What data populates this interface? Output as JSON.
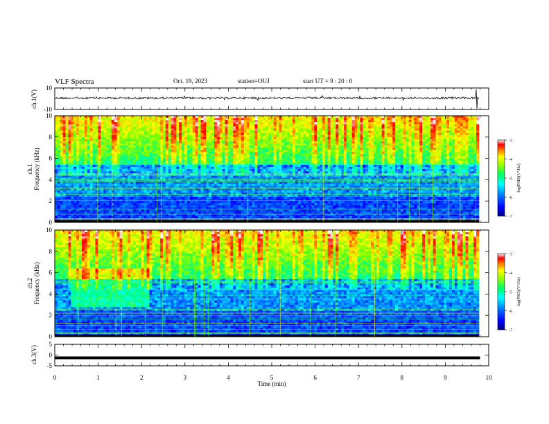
{
  "header": {
    "title": "VLF Spectra",
    "date": "Oct. 19, 2023",
    "station": "station=OUJ",
    "start": "start UT =  9 : 20 : 0"
  },
  "chart_data": [
    {
      "type": "line",
      "panel": "ch1-waveform",
      "ylabel": "ch.1(V)",
      "ylim": [
        -10,
        10
      ],
      "yticks": [
        "10",
        "-10"
      ],
      "xlim": [
        0,
        10
      ],
      "description_level": 0
    },
    {
      "type": "heatmap",
      "panel": "ch1-spectrogram",
      "ylabel": "ch.1\nFrequency (kHz)",
      "ylabel_line1": "ch.1",
      "ylabel_line2": "Frequency (kHz)",
      "ylim": [
        0,
        10
      ],
      "yticks": [
        "0",
        "2",
        "4",
        "6",
        "8",
        "10"
      ],
      "xlim": [
        0,
        10
      ],
      "colorbar": {
        "label": "log(PSD)(V²/Hz)",
        "range": [
          -7,
          -3
        ],
        "ticks": [
          "-3",
          "-4",
          "-5",
          "-6",
          "-7"
        ]
      }
    },
    {
      "type": "heatmap",
      "panel": "ch2-spectrogram",
      "ylabel_line1": "ch.2",
      "ylabel_line2": "Frequency (kHz)",
      "ylim": [
        0,
        10
      ],
      "yticks": [
        "0",
        "2",
        "4",
        "6",
        "8",
        "10"
      ],
      "xlim": [
        0,
        10
      ],
      "colorbar": {
        "label": "log(PSD)(V²/Hz)",
        "range": [
          -7,
          -3
        ],
        "ticks": [
          "-3",
          "-4",
          "-5",
          "-6",
          "-7"
        ]
      }
    },
    {
      "type": "line",
      "panel": "ch3-signal",
      "ylabel": "ch.3(V)",
      "ylim": [
        -5,
        5
      ],
      "yticks": [
        "5",
        "0",
        "-5"
      ],
      "x": [
        0,
        9.8
      ],
      "y": [
        -1.3,
        -1.3
      ],
      "xlabel": "Time (min)",
      "xticks": [
        "0",
        "1",
        "2",
        "3",
        "4",
        "5",
        "6",
        "7",
        "8",
        "9",
        "10"
      ],
      "xlim": [
        0,
        10
      ]
    }
  ],
  "colors": {
    "colormap": [
      "#000088",
      "#0000ff",
      "#0080ff",
      "#00ffff",
      "#00ff80",
      "#80ff00",
      "#ffff00",
      "#ff8000",
      "#ff0000",
      "#ffffff"
    ]
  }
}
